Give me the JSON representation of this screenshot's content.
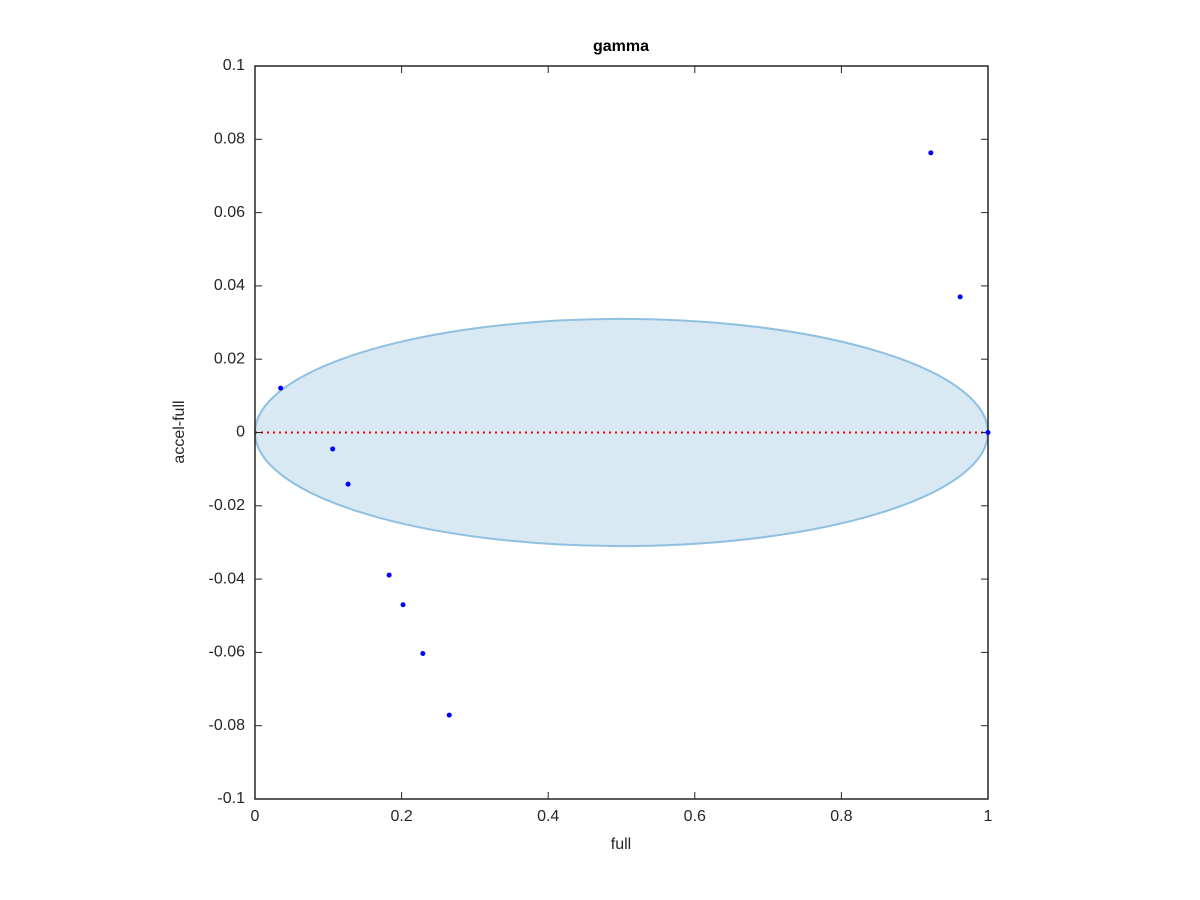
{
  "chart_data": {
    "type": "scatter",
    "title": "gamma",
    "x_label": "full",
    "y_label": "accel-full",
    "xlim": [
      0,
      1
    ],
    "ylim": [
      -0.1,
      0.1
    ],
    "xticks": [
      0,
      0.2,
      0.4,
      0.6,
      0.8,
      1
    ],
    "yticks": [
      -0.1,
      -0.08,
      -0.06,
      -0.04,
      -0.02,
      0,
      0.02,
      0.04,
      0.06,
      0.08,
      0.1
    ],
    "grid": false,
    "ellipse": {
      "center": [
        0.5,
        0
      ],
      "radii": [
        0.5,
        0.031
      ],
      "color": "#8fc0e0"
    },
    "reference_line": {
      "y": 0,
      "color": "#ff0000"
    },
    "series": [
      {
        "color": "#0000ff",
        "x": [
          0.035,
          0.106,
          0.127,
          0.183,
          0.202,
          0.229,
          0.265,
          0.922,
          0.962,
          1.0
        ],
        "values": [
          0.0121,
          -0.0045,
          -0.0141,
          -0.0389,
          -0.047,
          -0.0603,
          -0.0771,
          0.0763,
          0.037,
          0
        ]
      }
    ]
  }
}
